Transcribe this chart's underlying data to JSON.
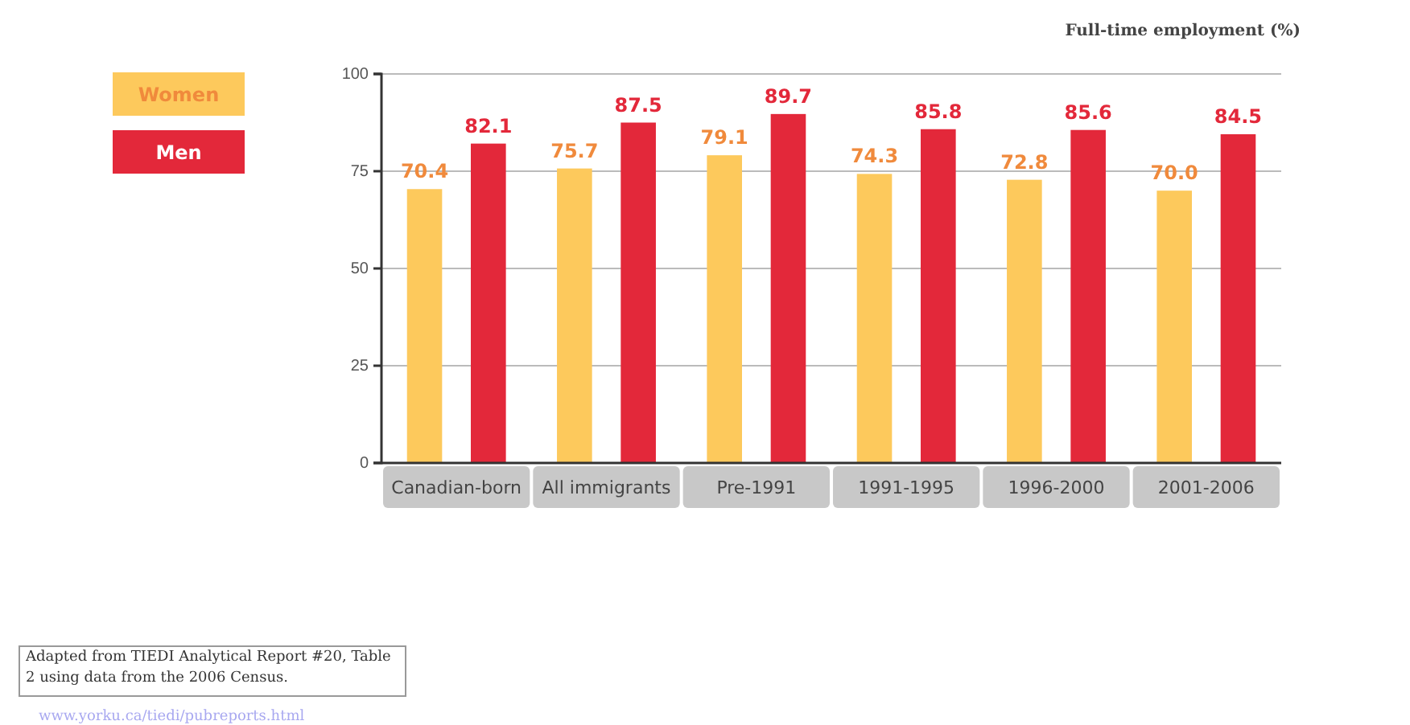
{
  "chart_data": {
    "type": "bar",
    "ylabel": "Full-time employment (%)",
    "categories": [
      "Canadian-born",
      "All immigrants",
      "Pre-1991",
      "1991-1995",
      "1996-2000",
      "2001-2006"
    ],
    "series": [
      {
        "name": "Women",
        "color": "#fdc95c",
        "values": [
          70.4,
          75.7,
          79.1,
          74.3,
          72.8,
          70.0
        ]
      },
      {
        "name": "Men",
        "color": "#e3283a",
        "values": [
          82.1,
          87.5,
          89.7,
          85.8,
          85.6,
          84.5
        ]
      }
    ],
    "value_labels": [
      [
        "70.4",
        "75.7",
        "79.1",
        "74.3",
        "72.8",
        "70.0"
      ],
      [
        "82.1",
        "87.5",
        "89.7",
        "85.8",
        "85.6",
        "84.5"
      ]
    ],
    "ylim": [
      0,
      100
    ],
    "yticks": [
      0,
      25,
      50,
      75,
      100
    ],
    "grid": "y",
    "legend": "top left",
    "annotations": [
      "Adapted from TIEDI Analytical Report #20, Table 2 using data from the 2006 Census.",
      "www.yorku.ca/tiedi/pubreports.html"
    ]
  }
}
